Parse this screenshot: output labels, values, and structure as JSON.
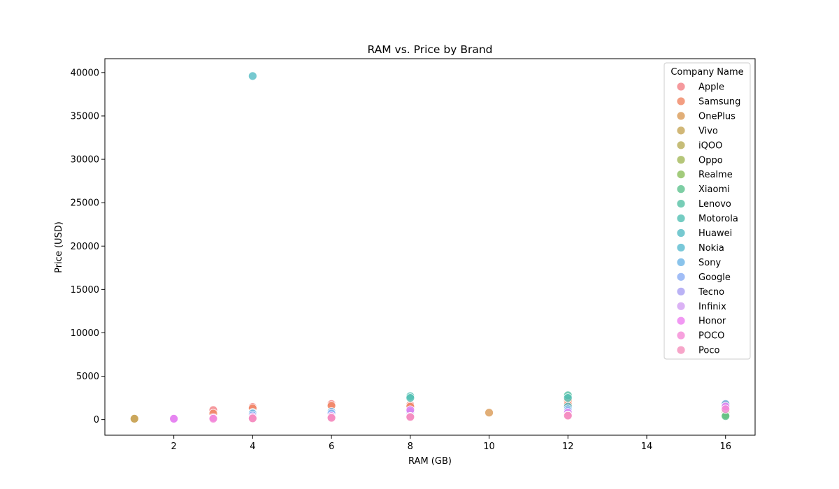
{
  "chart_data": {
    "type": "scatter",
    "title": "RAM vs. Price by Brand",
    "xlabel": "RAM (GB)",
    "ylabel": "Price (USD)",
    "xlim": [
      0.25,
      16.75
    ],
    "ylim": [
      -1800,
      41600
    ],
    "xticks": [
      2,
      4,
      6,
      8,
      10,
      12,
      14,
      16
    ],
    "yticks": [
      0,
      5000,
      10000,
      15000,
      20000,
      25000,
      30000,
      35000,
      40000
    ],
    "grid": false,
    "legend": {
      "title": "Company Name",
      "placement": "top-right"
    },
    "series": [
      {
        "name": "Apple",
        "color": "#f27f85",
        "points": [
          [
            3,
            1100
          ],
          [
            4,
            1450
          ],
          [
            6,
            1800
          ],
          [
            8,
            1700
          ],
          [
            12,
            1600
          ],
          [
            16,
            1750
          ]
        ]
      },
      {
        "name": "Samsung",
        "color": "#f08562",
        "points": [
          [
            3,
            700
          ],
          [
            4,
            1300
          ],
          [
            6,
            1600
          ],
          [
            8,
            1500
          ],
          [
            12,
            2200
          ],
          [
            12,
            1750
          ],
          [
            16,
            1300
          ]
        ]
      },
      {
        "name": "OnePlus",
        "color": "#d99a55",
        "points": [
          [
            1,
            100
          ],
          [
            4,
            400
          ],
          [
            8,
            600
          ],
          [
            10,
            800
          ],
          [
            12,
            1000
          ],
          [
            16,
            1000
          ]
        ]
      },
      {
        "name": "Vivo",
        "color": "#c6a555",
        "points": [
          [
            1,
            100
          ],
          [
            4,
            300
          ],
          [
            8,
            500
          ],
          [
            12,
            800
          ],
          [
            16,
            700
          ]
        ]
      },
      {
        "name": "iQOO",
        "color": "#b8ad56",
        "points": [
          [
            8,
            450
          ],
          [
            12,
            600
          ],
          [
            16,
            650
          ]
        ]
      },
      {
        "name": "Oppo",
        "color": "#a2b857",
        "points": [
          [
            4,
            250
          ],
          [
            6,
            300
          ],
          [
            8,
            400
          ],
          [
            12,
            800
          ],
          [
            16,
            800
          ]
        ]
      },
      {
        "name": "Realme",
        "color": "#8bbe5a",
        "points": [
          [
            4,
            200
          ],
          [
            6,
            250
          ],
          [
            8,
            350
          ],
          [
            12,
            600
          ],
          [
            16,
            500
          ]
        ]
      },
      {
        "name": "Xiaomi",
        "color": "#5dc28d",
        "points": [
          [
            4,
            180
          ],
          [
            6,
            250
          ],
          [
            8,
            350
          ],
          [
            12,
            700
          ],
          [
            16,
            400
          ]
        ]
      },
      {
        "name": "Lenovo",
        "color": "#54c0a4",
        "points": [
          [
            4,
            300
          ],
          [
            8,
            600
          ],
          [
            12,
            2800
          ]
        ]
      },
      {
        "name": "Motorola",
        "color": "#51bfb3",
        "points": [
          [
            4,
            250
          ],
          [
            6,
            350
          ],
          [
            8,
            2700
          ],
          [
            8,
            2500
          ],
          [
            12,
            2500
          ]
        ]
      },
      {
        "name": "Huawei",
        "color": "#54bcc4",
        "points": [
          [
            4,
            39600
          ],
          [
            4,
            800
          ],
          [
            8,
            1000
          ],
          [
            12,
            1500
          ]
        ]
      },
      {
        "name": "Nokia",
        "color": "#58bad0",
        "points": [
          [
            2,
            100
          ],
          [
            3,
            150
          ],
          [
            4,
            200
          ],
          [
            6,
            300
          ]
        ]
      },
      {
        "name": "Sony",
        "color": "#6bb4e6",
        "points": [
          [
            4,
            700
          ],
          [
            6,
            900
          ],
          [
            8,
            1100
          ],
          [
            12,
            1200
          ],
          [
            16,
            1800
          ]
        ]
      },
      {
        "name": "Google",
        "color": "#8aacf4",
        "points": [
          [
            4,
            500
          ],
          [
            6,
            700
          ],
          [
            8,
            900
          ],
          [
            12,
            1000
          ],
          [
            16,
            1500
          ]
        ]
      },
      {
        "name": "Tecno",
        "color": "#a99ff3",
        "points": [
          [
            2,
            80
          ],
          [
            3,
            120
          ],
          [
            4,
            150
          ],
          [
            6,
            200
          ],
          [
            8,
            250
          ]
        ]
      },
      {
        "name": "Infinix",
        "color": "#d29ff3",
        "points": [
          [
            2,
            90
          ],
          [
            3,
            130
          ],
          [
            4,
            160
          ],
          [
            6,
            220
          ],
          [
            8,
            280
          ],
          [
            12,
            400
          ]
        ]
      },
      {
        "name": "Honor",
        "color": "#ee7ef0",
        "points": [
          [
            2,
            100
          ],
          [
            3,
            200
          ],
          [
            4,
            300
          ],
          [
            6,
            400
          ],
          [
            8,
            1100
          ],
          [
            12,
            800
          ],
          [
            16,
            1500
          ]
        ]
      },
      {
        "name": "POCO",
        "color": "#f58ad6",
        "points": [
          [
            3,
            100
          ],
          [
            4,
            150
          ],
          [
            6,
            250
          ],
          [
            8,
            350
          ],
          [
            12,
            500
          ],
          [
            16,
            1200
          ]
        ]
      },
      {
        "name": "Poco",
        "color": "#f58fbc",
        "points": [
          [
            4,
            140
          ],
          [
            6,
            200
          ],
          [
            8,
            300
          ],
          [
            12,
            450
          ]
        ]
      }
    ]
  }
}
